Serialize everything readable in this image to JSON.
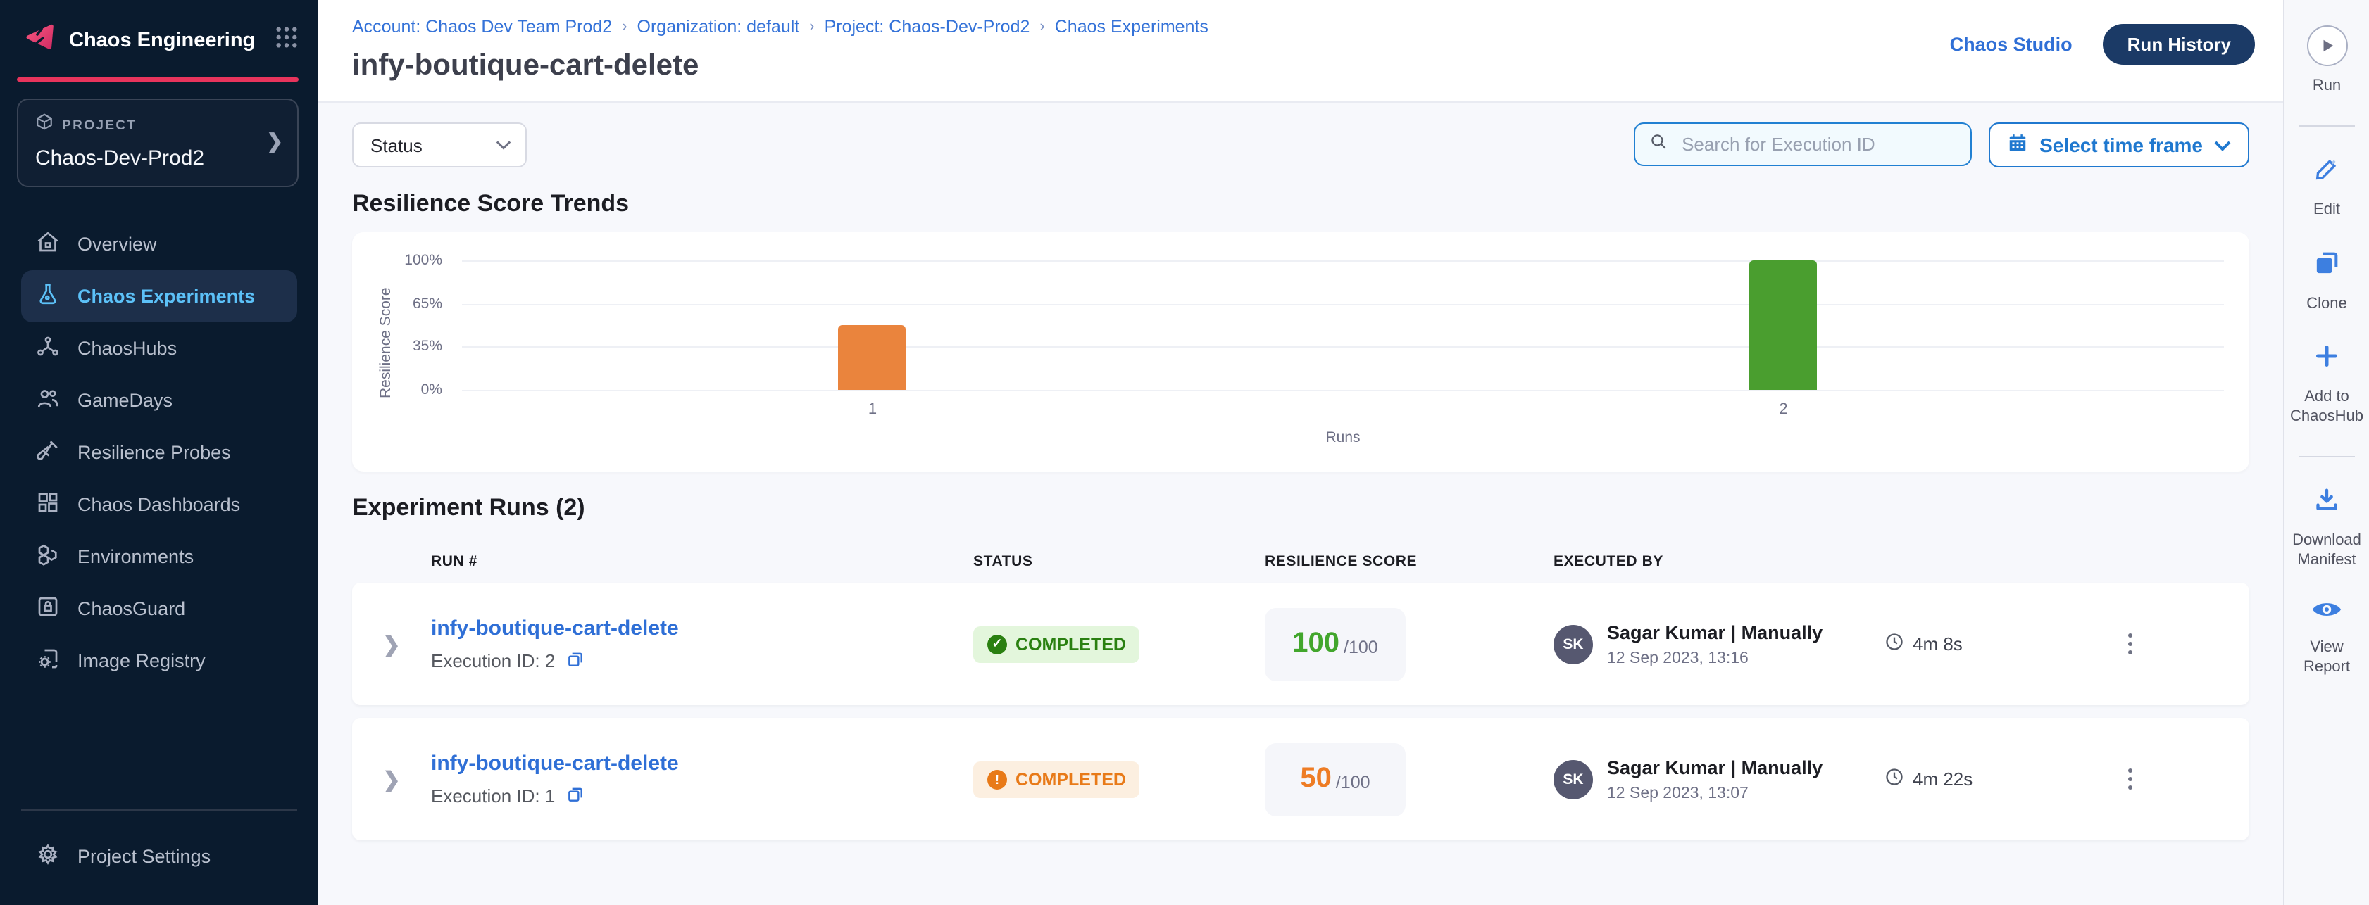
{
  "app": {
    "title": "Chaos Engineering"
  },
  "breadcrumb": {
    "items": [
      "Account: Chaos Dev Team Prod2",
      "Organization: default",
      "Project: Chaos-Dev-Prod2",
      "Chaos Experiments"
    ],
    "separator": "›"
  },
  "page": {
    "title": "infy-boutique-cart-delete"
  },
  "header_actions": {
    "chaos_studio": "Chaos Studio",
    "run_history": "Run History"
  },
  "sidebar": {
    "project_label": "PROJECT",
    "project_name": "Chaos-Dev-Prod2",
    "items": [
      {
        "label": "Overview",
        "icon": "home-icon",
        "active": false
      },
      {
        "label": "Chaos Experiments",
        "icon": "flask-icon",
        "active": true
      },
      {
        "label": "ChaosHubs",
        "icon": "hub-icon",
        "active": false
      },
      {
        "label": "GameDays",
        "icon": "people-icon",
        "active": false
      },
      {
        "label": "Resilience Probes",
        "icon": "probe-icon",
        "active": false
      },
      {
        "label": "Chaos Dashboards",
        "icon": "dashboard-icon",
        "active": false
      },
      {
        "label": "Environments",
        "icon": "hexagons-icon",
        "active": false
      },
      {
        "label": "ChaosGuard",
        "icon": "lock-icon",
        "active": false
      },
      {
        "label": "Image Registry",
        "icon": "registry-icon",
        "active": false
      }
    ],
    "footer_item": {
      "label": "Project Settings",
      "icon": "gear-icon"
    }
  },
  "filters": {
    "status_label": "Status",
    "search_placeholder": "Search for Execution ID",
    "time_frame_label": "Select time frame"
  },
  "chart_section": {
    "title": "Resilience Score Trends"
  },
  "chart_data": {
    "type": "bar",
    "title": "Resilience Score Trends",
    "categories": [
      "1",
      "2"
    ],
    "values": [
      50,
      100
    ],
    "bar_colors": [
      "#ea843d",
      "#4a9e2f"
    ],
    "xlabel": "Runs",
    "ylabel": "Resilience Score",
    "yticks_bottom_to_top": [
      "0%",
      "35%",
      "65%",
      "100%"
    ],
    "ylim": [
      0,
      100
    ],
    "grid": true,
    "legend": false
  },
  "runs_section": {
    "title": "Experiment Runs (2)",
    "columns": [
      "RUN #",
      "STATUS",
      "RESILIENCE SCORE",
      "EXECUTED BY"
    ],
    "rows": [
      {
        "name": "infy-boutique-cart-delete",
        "execution_id_label": "Execution ID: 2",
        "status": "COMPLETED",
        "status_kind": "success",
        "status_glyph": "✓",
        "score": "100",
        "score_suffix": "/100",
        "score_color": "#42a62c",
        "avatar": "SK",
        "executed_by": "Sagar Kumar | Manually",
        "executed_at": "12 Sep 2023, 13:16",
        "duration": "4m 8s"
      },
      {
        "name": "infy-boutique-cart-delete",
        "execution_id_label": "Execution ID: 1",
        "status": "COMPLETED",
        "status_kind": "warning",
        "status_glyph": "!",
        "score": "50",
        "score_suffix": "/100",
        "score_color": "#ee7c24",
        "avatar": "SK",
        "executed_by": "Sagar Kumar | Manually",
        "executed_at": "12 Sep 2023, 13:07",
        "duration": "4m 22s"
      }
    ]
  },
  "action_rail": {
    "run": {
      "label": "Run",
      "icon": "play-icon"
    },
    "items": [
      {
        "label": "Edit",
        "icon": "pencil-icon"
      },
      {
        "label": "Clone",
        "icon": "copy-icon"
      },
      {
        "label": "Add to ChaosHub",
        "icon": "plus-icon"
      },
      {
        "label": "Download Manifest",
        "icon": "download-icon"
      },
      {
        "label": "View Report",
        "icon": "eye-icon"
      }
    ]
  },
  "colors": {
    "sidebar_bg": "#0a1b2e",
    "brand_pink": "#e8345c",
    "active_nav": "#5cc1f8",
    "link_blue": "#2f6fd6",
    "primary_blue": "#1f78cf",
    "pill_navy": "#1b3a66",
    "success_green": "#2a8011",
    "warning_orange": "#e87a18",
    "bar_orange": "#ea843d",
    "bar_green": "#4a9e2f",
    "content_bg": "#f7f8fc"
  }
}
